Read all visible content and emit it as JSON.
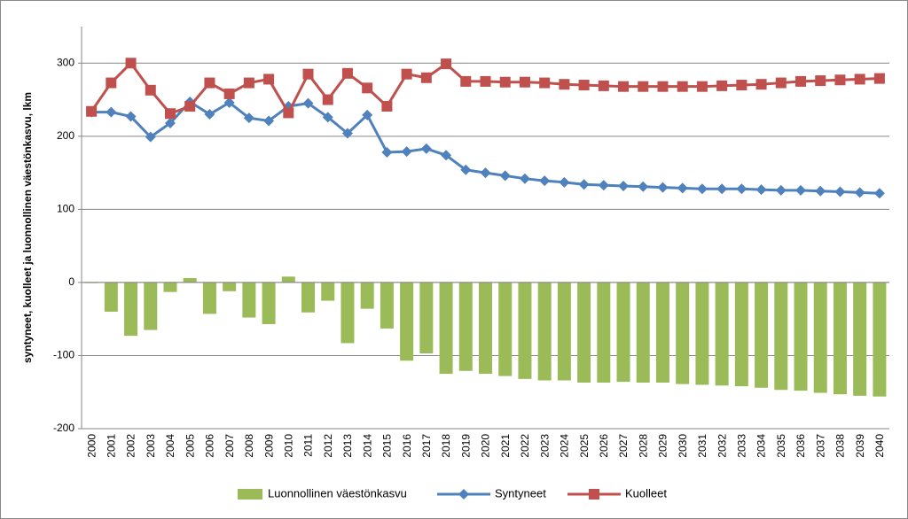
{
  "chart_data": {
    "type": "bar",
    "y_label": "syntyneet, kuolleet ja luonnollinen väestönkasvu,  lkm",
    "categories": [
      "2000",
      "2001",
      "2002",
      "2003",
      "2004",
      "2005",
      "2006",
      "2007",
      "2008",
      "2009",
      "2010",
      "2011",
      "2012",
      "2013",
      "2014",
      "2015",
      "2016",
      "2017",
      "2018",
      "2019",
      "2020",
      "2021",
      "2022",
      "2023",
      "2024",
      "2025",
      "2026",
      "2027",
      "2028",
      "2029",
      "2030",
      "2031",
      "2032",
      "2033",
      "2034",
      "2035",
      "2036",
      "2037",
      "2038",
      "2039",
      "2040"
    ],
    "series": [
      {
        "name": "Luonnollinen väestönkasvu",
        "type": "bar",
        "color": "#9bbb59",
        "values": [
          -1,
          -40,
          -73,
          -65,
          -13,
          6,
          -43,
          -12,
          -48,
          -57,
          8,
          -41,
          -25,
          -83,
          -36,
          -63,
          -107,
          -97,
          -125,
          -121,
          -125,
          -128,
          -132,
          -134,
          -134,
          -137,
          -137,
          -136,
          -137,
          -137,
          -139,
          -140,
          -141,
          -142,
          -144,
          -147,
          -148,
          -151,
          -153,
          -155,
          -156
        ]
      },
      {
        "name": "Syntyneet",
        "type": "line",
        "marker": "diamond",
        "color": "#4f81bd",
        "values": [
          233,
          233,
          227,
          199,
          218,
          247,
          230,
          246,
          225,
          221,
          241,
          245,
          226,
          204,
          229,
          178,
          179,
          183,
          174,
          154,
          150,
          146,
          142,
          139,
          137,
          134,
          133,
          132,
          131,
          130,
          129,
          128,
          128,
          128,
          127,
          126,
          126,
          125,
          124,
          123,
          122
        ]
      },
      {
        "name": "Kuolleet",
        "type": "line",
        "marker": "square",
        "color": "#c0504d",
        "values": [
          234,
          273,
          300,
          263,
          231,
          241,
          273,
          258,
          273,
          278,
          232,
          285,
          250,
          286,
          266,
          241,
          285,
          280,
          299,
          275,
          275,
          274,
          274,
          273,
          271,
          270,
          269,
          268,
          268,
          268,
          268,
          268,
          269,
          270,
          271,
          273,
          275,
          276,
          277,
          278,
          279
        ]
      }
    ],
    "ylim": [
      -200,
      350
    ],
    "yticks": [
      -200,
      -100,
      0,
      100,
      200,
      300
    ],
    "grid": true,
    "legend": "bottom"
  }
}
